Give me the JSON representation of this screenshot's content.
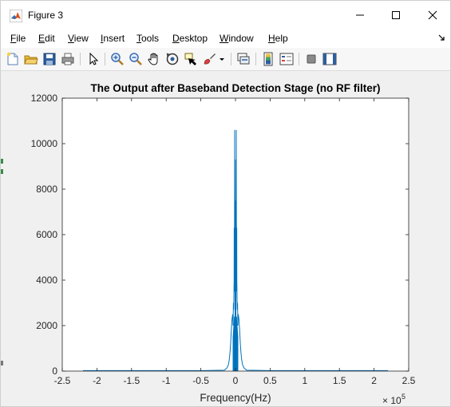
{
  "window": {
    "title": "Figure 3",
    "controls": [
      "minimize",
      "maximize",
      "close"
    ]
  },
  "menu": {
    "items": [
      {
        "label": "File",
        "key": "F"
      },
      {
        "label": "Edit",
        "key": "E"
      },
      {
        "label": "View",
        "key": "V"
      },
      {
        "label": "Insert",
        "key": "I"
      },
      {
        "label": "Tools",
        "key": "T"
      },
      {
        "label": "Desktop",
        "key": "D"
      },
      {
        "label": "Window",
        "key": "W"
      },
      {
        "label": "Help",
        "key": "H"
      }
    ]
  },
  "toolbar": {
    "icons": [
      "new-figure-icon",
      "open-file-icon",
      "save-icon",
      "print-icon",
      "edit-plot-arrow-icon",
      "zoom-in-icon",
      "zoom-out-icon",
      "pan-hand-icon",
      "rotate-3d-icon",
      "data-cursor-icon",
      "brush-icon",
      "brush-dropdown-icon",
      "link-plot-icon",
      "insert-colorbar-icon",
      "insert-legend-icon",
      "hide-plot-tools-icon",
      "show-plot-tools-icon"
    ]
  },
  "colors": {
    "series": "#0072bd",
    "axes_bg": "#ffffff",
    "figure_bg": "#f0f0f0"
  },
  "chart_data": {
    "type": "line",
    "title": "The Output after Baseband Detection Stage (no RF filter)",
    "xlabel": "Frequency(Hz)",
    "ylabel": "",
    "x_exponent_label": "× 10",
    "x_exponent": "5",
    "xlim": [
      -2.5,
      2.5
    ],
    "ylim": [
      0,
      12000
    ],
    "x_scale_factor": 100000,
    "xticks": [
      -2.5,
      -2,
      -1.5,
      -1,
      -0.5,
      0,
      0.5,
      1,
      1.5,
      2,
      2.5
    ],
    "xtick_labels": [
      "-2.5",
      "-2",
      "-1.5",
      "-1",
      "-0.5",
      "0",
      "0.5",
      "1",
      "1.5",
      "2",
      "2.5"
    ],
    "yticks": [
      0,
      2000,
      4000,
      6000,
      8000,
      10000,
      12000
    ],
    "ytick_labels": [
      "0",
      "2000",
      "4000",
      "6000",
      "8000",
      "10000",
      "12000"
    ],
    "grid": false,
    "series": [
      {
        "color": "#0072bd",
        "x": [
          -2.2,
          -0.5,
          -0.16,
          -0.12,
          -0.1,
          -0.09,
          -0.08,
          -0.07,
          -0.06,
          -0.05,
          -0.04,
          -0.035,
          -0.03,
          -0.025,
          -0.02,
          -0.018,
          -0.015,
          -0.012,
          -0.01,
          -0.008,
          -0.006,
          -0.004,
          -0.002,
          0,
          0.002,
          0.004,
          0.006,
          0.008,
          0.01,
          0.012,
          0.015,
          0.018,
          0.02,
          0.025,
          0.03,
          0.035,
          0.04,
          0.05,
          0.06,
          0.07,
          0.08,
          0.09,
          0.1,
          0.12,
          0.16,
          0.5,
          2.2
        ],
        "y": [
          20,
          20,
          40,
          150,
          300,
          500,
          800,
          1200,
          1800,
          2300,
          2500,
          2000,
          3000,
          2700,
          4000,
          6300,
          3500,
          10600,
          5000,
          9300,
          2000,
          7500,
          3000,
          1500,
          3000,
          7500,
          2000,
          9300,
          5000,
          10600,
          3500,
          6300,
          4000,
          2700,
          3000,
          2000,
          2500,
          2300,
          1800,
          1200,
          800,
          500,
          300,
          150,
          40,
          20,
          20
        ]
      }
    ]
  }
}
